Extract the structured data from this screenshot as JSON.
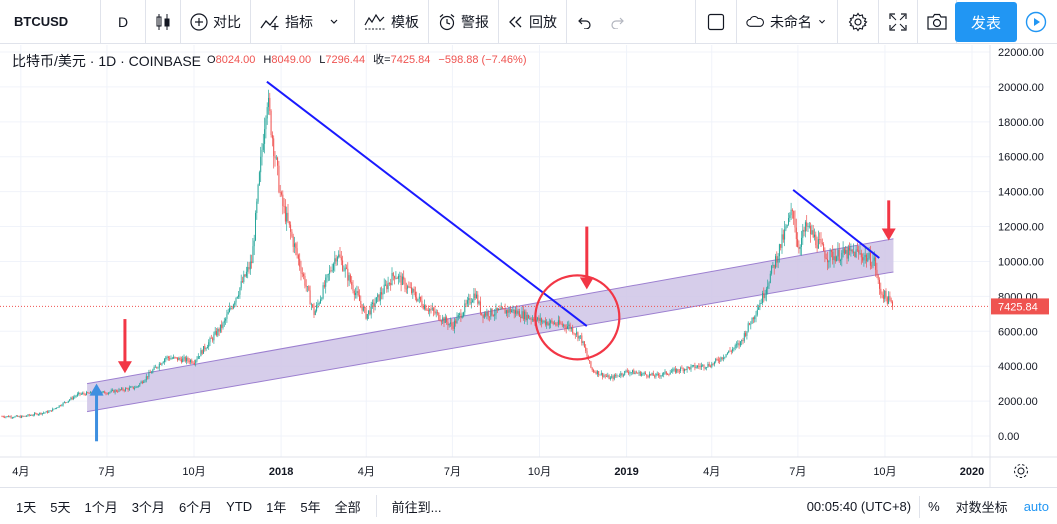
{
  "toolbar": {
    "symbol": "BTCUSD",
    "interval": "D",
    "compare_label": "对比",
    "indicators_label": "指标",
    "templates_label": "模板",
    "alert_label": "警报",
    "replay_label": "回放",
    "layout_name": "未命名",
    "publish_label": "发表"
  },
  "legend": {
    "symbol_text": "比特币/美元 · 1D · COINBASE",
    "open_key": "O",
    "open": "8024.00",
    "high_key": "H",
    "high": "8049.00",
    "low_key": "L",
    "low": "7296.44",
    "close_key": "收=",
    "close": "7425.84",
    "change": "−598.88 (−7.46%)"
  },
  "price_axis": {
    "ticks": [
      "22000.00",
      "20000.00",
      "18000.00",
      "16000.00",
      "14000.00",
      "12000.00",
      "10000.00",
      "8000.00",
      "6000.00",
      "4000.00",
      "2000.00",
      "0.00"
    ],
    "last_price": "7425.84"
  },
  "time_axis": {
    "ticks": [
      "4月",
      "7月",
      "10月",
      "2018",
      "4月",
      "7月",
      "10月",
      "2019",
      "4月",
      "7月",
      "10月",
      "2020"
    ]
  },
  "bottom": {
    "ranges": [
      "1天",
      "5天",
      "1个月",
      "3个月",
      "6个月",
      "YTD",
      "1年",
      "5年",
      "全部"
    ],
    "goto_label": "前往到...",
    "time": "00:05:40 (UTC+8)",
    "percent": "%",
    "log_label": "对数坐标",
    "auto_label": "auto"
  },
  "colors": {
    "accent": "#2196f3",
    "up": "#26a69a",
    "down": "#ef5350",
    "trendline": "#1a1aff",
    "channel_fill": "#cfc4e6",
    "channel_edge": "#9c7fd0",
    "annotation_red": "#f23645",
    "annotation_blue": "#3d8fe0"
  },
  "chart_data": {
    "type": "candlestick",
    "title": "比特币/美元 · 1D · COINBASE",
    "xlabel": "",
    "ylabel": "",
    "ylim": [
      -1200,
      22400
    ],
    "x": [
      "2017-03-01",
      "2017-04-01",
      "2017-05-01",
      "2017-06-01",
      "2017-07-01",
      "2017-08-01",
      "2017-09-01",
      "2017-10-01",
      "2017-11-01",
      "2017-12-01",
      "2017-12-17",
      "2018-01-01",
      "2018-02-05",
      "2018-03-01",
      "2018-04-01",
      "2018-05-01",
      "2018-06-01",
      "2018-07-01",
      "2018-07-25",
      "2018-08-01",
      "2018-09-01",
      "2018-10-01",
      "2018-11-01",
      "2018-11-14",
      "2018-11-25",
      "2018-12-15",
      "2019-01-01",
      "2019-02-01",
      "2019-03-01",
      "2019-04-01",
      "2019-05-01",
      "2019-05-25",
      "2019-06-26",
      "2019-07-01",
      "2019-07-10",
      "2019-08-01",
      "2019-09-01",
      "2019-09-20",
      "2019-09-25",
      "2019-10-10"
    ],
    "y": [
      1150,
      1100,
      1400,
      2400,
      2500,
      2800,
      4500,
      4300,
      6400,
      10000,
      19500,
      13500,
      7000,
      10500,
      6900,
      9300,
      7500,
      6300,
      8200,
      7000,
      7200,
      6600,
      6300,
      5600,
      3800,
      3300,
      3700,
      3450,
      3850,
      4100,
      5300,
      8000,
      13000,
      10800,
      12000,
      10300,
      10500,
      10000,
      8400,
      7425
    ],
    "annotations": {
      "channel": "rising channel",
      "trendline_down_2018": "from 2017-12 high to 2018-11",
      "trendline_down_2019": "from 2019-06 high to 2019-09"
    }
  }
}
